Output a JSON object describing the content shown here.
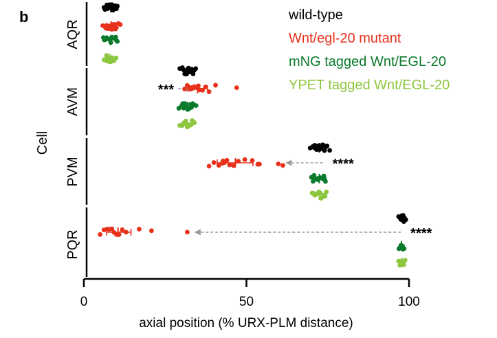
{
  "panel_label": "b",
  "chart_data": {
    "type": "scatter",
    "subtype": "horizontal dot plot, grouped by cell",
    "ylabel": "Cell",
    "xlabel": "axial position (% URX-PLM distance)",
    "xlim": [
      0,
      100
    ],
    "xticks": [
      0,
      50,
      100
    ],
    "grid": false,
    "legend_position": "top-right",
    "categories": [
      "AQR",
      "AVM",
      "PVM",
      "PQR"
    ],
    "series": [
      {
        "name": "wild-type",
        "color": "#000000",
        "values": {
          "AQR": [
            6.2,
            6.8,
            7.1,
            7.5,
            7.9,
            8.2,
            8.6,
            9.0,
            9.4,
            9.8,
            10.3,
            6.5,
            7.3,
            8.0,
            8.8,
            9.6,
            10.0,
            7.7,
            8.4,
            9.2
          ],
          "AVM": [
            29.5,
            30.3,
            31.0,
            31.6,
            32.2,
            32.9,
            33.6,
            34.4,
            30.8,
            31.9,
            32.5,
            33.2,
            30.0,
            31.3,
            33.9,
            32.0
          ],
          "PVM": [
            69.6,
            70.4,
            71.0,
            71.6,
            72.2,
            72.8,
            73.4,
            74.0,
            74.8,
            75.6,
            70.8,
            71.9,
            73.0,
            74.4,
            72.5,
            71.3,
            73.7
          ],
          "PQR": [
            96.8,
            97.3,
            97.8,
            98.2,
            98.6,
            99.0,
            97.5,
            98.4,
            98.0
          ]
        },
        "means": {
          "AQR": 8.3,
          "AVM": 32.0,
          "PVM": 72.4,
          "PQR": 98.0
        }
      },
      {
        "name": "Wnt/egl-20 mutant",
        "color": "#e8311a",
        "values": {
          "AQR": [
            5.8,
            6.4,
            7.0,
            7.5,
            8.0,
            8.4,
            8.9,
            9.4,
            10.0,
            10.6,
            11.2,
            6.7,
            7.7,
            8.6,
            9.7,
            7.2,
            8.2,
            9.1
          ],
          "AVM": [
            31.0,
            31.8,
            32.5,
            33.2,
            34.0,
            34.8,
            35.6,
            36.5,
            37.4,
            38.5,
            40.5,
            47.0,
            32.8,
            33.6,
            35.2
          ],
          "PVM": [
            38.5,
            40.0,
            41.5,
            42.5,
            43.2,
            44.0,
            44.8,
            46.0,
            47.5,
            49.5,
            51.8,
            53.5,
            54.0,
            59.8,
            61.2,
            42.8
          ],
          "PQR": [
            5.0,
            6.2,
            7.2,
            7.9,
            8.6,
            9.3,
            10.0,
            10.8,
            11.8,
            13.0,
            17.0,
            20.8,
            31.8
          ]
        },
        "means": {
          "AQR": 8.4,
          "AVM": 35.0,
          "PVM": 46.6,
          "PQR": 10.5
        },
        "error_bars": {
          "AQR": [
            7.0,
            9.8
          ],
          "AVM": [
            32.0,
            38.0
          ],
          "PVM": [
            41.0,
            52.0
          ],
          "PQR": [
            7.0,
            14.5
          ]
        }
      },
      {
        "name": "mNG tagged Wnt/EGL-20",
        "color": "#0b7a2c",
        "values": {
          "AQR": [
            6.0,
            6.6,
            7.2,
            7.8,
            8.3,
            8.8,
            9.3,
            9.8,
            10.3,
            7.0,
            8.0,
            9.0,
            10.0,
            6.3,
            8.6
          ],
          "AVM": [
            29.2,
            30.0,
            30.7,
            31.3,
            31.9,
            32.5,
            33.1,
            33.8,
            34.5,
            30.4,
            32.2,
            33.5,
            31.0,
            32.8
          ],
          "PVM": [
            70.0,
            70.8,
            71.5,
            72.1,
            72.8,
            73.5,
            74.3,
            71.2,
            72.5,
            73.8,
            70.5,
            72.0,
            74.0
          ],
          "PQR": [
            96.9,
            97.3,
            97.7,
            98.1,
            98.5,
            97.5,
            98.0
          ]
        },
        "means": {
          "AQR": 8.2,
          "AVM": 31.9,
          "PVM": 72.4,
          "PQR": 97.7
        }
      },
      {
        "name": "YPET tagged Wnt/EGL-20",
        "color": "#8dc63f",
        "values": {
          "AQR": [
            6.2,
            6.8,
            7.3,
            7.8,
            8.3,
            8.8,
            9.3,
            9.9,
            7.0,
            8.0,
            9.0,
            6.5,
            8.6
          ],
          "AVM": [
            29.5,
            30.2,
            30.9,
            31.5,
            32.1,
            32.7,
            33.3,
            34.0,
            30.6,
            31.8,
            33.0,
            31.2,
            32.4,
            33.6
          ],
          "PVM": [
            70.2,
            71.0,
            71.7,
            72.3,
            73.0,
            73.8,
            74.6,
            71.4,
            72.7,
            74.2,
            70.6,
            73.4
          ],
          "PQR": [
            96.8,
            97.2,
            97.6,
            98.0,
            98.4,
            98.8,
            97.4,
            98.2
          ]
        },
        "means": {
          "AQR": 8.0,
          "AVM": 31.8,
          "PVM": 72.4,
          "PQR": 97.8
        }
      }
    ],
    "annotations": [
      {
        "text": "***",
        "cell": "AVM",
        "arrow_from": 29.0,
        "arrow_to": 33.5
      },
      {
        "text": "****",
        "cell": "PVM",
        "arrow_from": 73.5,
        "arrow_to": 62.0
      },
      {
        "text": "****",
        "cell": "PQR",
        "arrow_from": 97.5,
        "arrow_to": 34.0
      }
    ]
  }
}
